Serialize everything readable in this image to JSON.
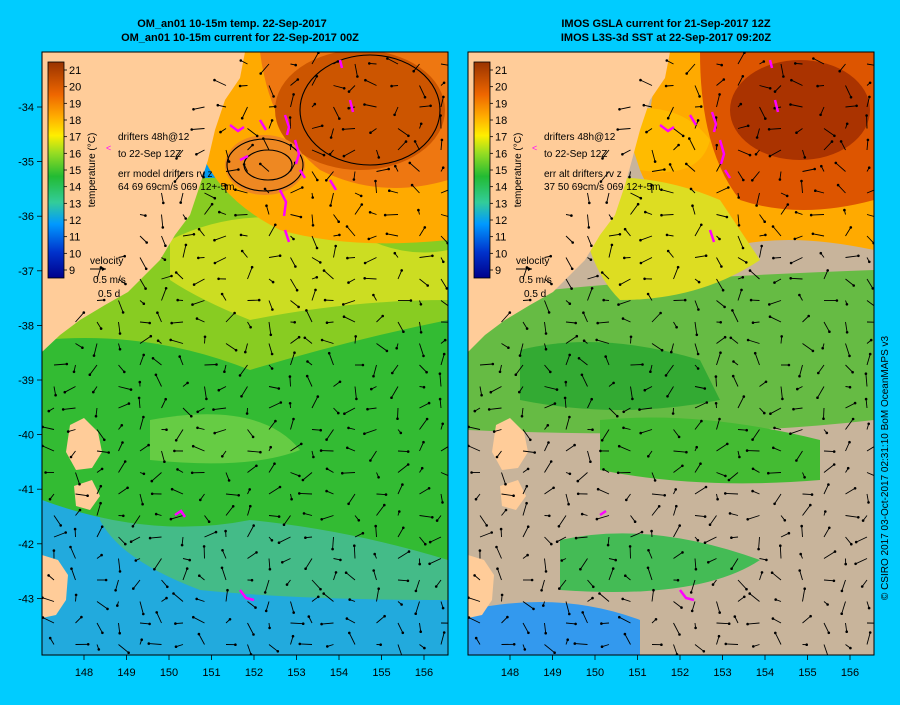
{
  "colors": {
    "background": "#00ccff",
    "land": "#ffcc99",
    "nodata": "#c8b49b",
    "drifter": "#ff00ff",
    "vector": "#000000"
  },
  "left_panel": {
    "title_line1": "OM_an01 10-15m temp. 22-Sep-2017",
    "title_line2": "OM_an01 10-15m current for 22-Sep-2017 00Z",
    "drifter_label_line1": "drifters 48h@12",
    "drifter_label_line2": "to 22-Sep 12Z",
    "err_line1": "err model drifters rv z",
    "err_line2": "64 69 69cm/s 069 12+-5m"
  },
  "right_panel": {
    "title_line1": "IMOS GSLA current for 21-Sep-2017 12Z",
    "title_line2": "IMOS L3S-3d SST at 22-Sep-2017 09:20Z",
    "drifter_label_line1": "drifters 48h@12",
    "drifter_label_line2": "to 22-Sep 12Z",
    "err_line1": "err alt drifters rv z",
    "err_line2": "37 50 69cm/s 069 12+-5m"
  },
  "colorbar": {
    "ticks": [
      "21",
      "20",
      "19",
      "18",
      "17",
      "16",
      "15",
      "14",
      "13",
      "12",
      "11",
      "10",
      "9"
    ],
    "label": "temperature (°C)"
  },
  "velocity_key": {
    "title": "velocity",
    "speed": "0.5 m/s",
    "days": "0.5 d"
  },
  "lat_ticks": [
    "-34",
    "-35",
    "-36",
    "-37",
    "-38",
    "-39",
    "-40",
    "-41",
    "-42",
    "-43"
  ],
  "lon_ticks": [
    "148",
    "149",
    "150",
    "151",
    "152",
    "153",
    "154",
    "155",
    "156"
  ],
  "credit": "© CSIRO 2017   03-Oct-2017 02:31:10 BoM OceanMAPS v3"
}
